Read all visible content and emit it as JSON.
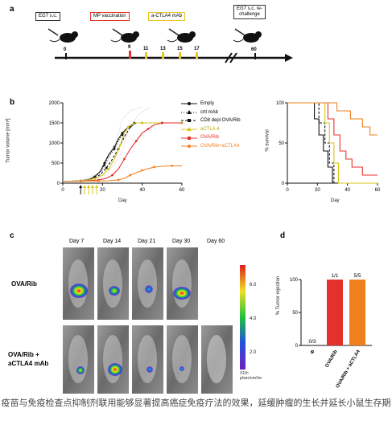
{
  "panels": {
    "a": "a",
    "b": "b",
    "c": "c",
    "d": "d"
  },
  "timeline": {
    "boxes": [
      {
        "text": "EG7 s.c.",
        "color": "#333333"
      },
      {
        "text": "MP vaccination",
        "color": "#e5312c"
      },
      {
        "text": "a-CTLA4 mAb",
        "color": "#e8c528"
      },
      {
        "text": "EG7 s.c. re-\nchallenge",
        "color": "#333333"
      }
    ],
    "ticks": [
      "0",
      "9",
      "11",
      "13",
      "15",
      "17",
      "60"
    ]
  },
  "chart_data": [
    {
      "type": "line",
      "ylabel": "Tumor volume [mm³]",
      "xlabel": "Day",
      "xlim": [
        0,
        60
      ],
      "ylim": [
        0,
        2000
      ],
      "xticks": [
        "0",
        "20",
        "40",
        "60"
      ],
      "yticks": [
        "0",
        "500",
        "1000",
        "1500",
        "2000"
      ],
      "series": [
        {
          "name": "Empty",
          "color": "#111111",
          "x": [
            0,
            9,
            13,
            16,
            19,
            21,
            23,
            26,
            28,
            30,
            33,
            36,
            40,
            50,
            60
          ],
          "y": [
            40,
            60,
            90,
            160,
            300,
            500,
            700,
            900,
            1100,
            1250,
            1400,
            1500,
            1500,
            1500,
            1500
          ]
        },
        {
          "name": "crtl mAb",
          "color": "#111111",
          "x": [
            0,
            9,
            13,
            16,
            19,
            21,
            23,
            26,
            28,
            30,
            33,
            36,
            40,
            50,
            60
          ],
          "y": [
            40,
            60,
            90,
            150,
            280,
            450,
            650,
            850,
            1050,
            1200,
            1380,
            1500,
            1500,
            1500,
            1500
          ]
        },
        {
          "name": "CD8 depl OVA/Rib",
          "color": "#111111",
          "x": [
            0,
            9,
            13,
            16,
            19,
            22,
            25,
            28,
            31,
            34,
            37,
            40,
            50,
            60
          ],
          "y": [
            40,
            60,
            80,
            120,
            220,
            380,
            600,
            850,
            1150,
            1400,
            1500,
            1500,
            1500,
            1500
          ]
        },
        {
          "name": "aCTLA 4",
          "color": "#d8c51a",
          "x": [
            0,
            9,
            13,
            16,
            20,
            23,
            26,
            29,
            31,
            33,
            36,
            40,
            50,
            60
          ],
          "y": [
            40,
            60,
            80,
            110,
            200,
            350,
            600,
            950,
            1250,
            1400,
            1500,
            1500,
            1500,
            1500
          ]
        },
        {
          "name": "OVA/Rib",
          "color": "#e5312c",
          "x": [
            0,
            9,
            13,
            18,
            22,
            25,
            28,
            31,
            34,
            37,
            40,
            43,
            46,
            50,
            60
          ],
          "y": [
            40,
            50,
            60,
            80,
            120,
            200,
            350,
            600,
            850,
            1050,
            1250,
            1350,
            1450,
            1500,
            1500
          ]
        },
        {
          "name": "OVA/Rib+aCTLA4",
          "color": "#f07f1e",
          "x": [
            0,
            9,
            13,
            18,
            23,
            28,
            31,
            34,
            37,
            40,
            43,
            46,
            50,
            55,
            60
          ],
          "y": [
            40,
            45,
            50,
            55,
            60,
            80,
            120,
            200,
            260,
            320,
            360,
            400,
            420,
            430,
            430
          ]
        }
      ]
    },
    {
      "type": "line",
      "ylabel": "% survival",
      "xlabel": "Day",
      "xlim": [
        0,
        60
      ],
      "ylim": [
        0,
        100
      ],
      "xticks": [
        "0",
        "20",
        "40",
        "60"
      ],
      "yticks": [
        "0",
        "50",
        "100"
      ],
      "series": [
        {
          "color": "#111111",
          "x": [
            0,
            18,
            18,
            21,
            21,
            24,
            24,
            27,
            27,
            30,
            30,
            60
          ],
          "y": [
            100,
            100,
            80,
            80,
            60,
            60,
            40,
            40,
            20,
            20,
            0,
            0
          ]
        },
        {
          "color": "#111111",
          "x": [
            0,
            21,
            21,
            25,
            25,
            28,
            28,
            31,
            31,
            60
          ],
          "y": [
            100,
            100,
            75,
            75,
            50,
            50,
            25,
            25,
            0,
            0
          ]
        },
        {
          "color": "#d8c51a",
          "x": [
            0,
            25,
            25,
            28,
            28,
            31,
            31,
            34,
            34,
            60
          ],
          "y": [
            100,
            100,
            75,
            75,
            50,
            50,
            25,
            25,
            0,
            0
          ]
        },
        {
          "color": "#e5312c",
          "x": [
            0,
            27,
            27,
            31,
            31,
            35,
            35,
            39,
            39,
            43,
            43,
            50,
            50,
            60
          ],
          "y": [
            100,
            100,
            80,
            80,
            60,
            60,
            40,
            40,
            30,
            30,
            20,
            20,
            10,
            10
          ]
        },
        {
          "color": "#f07f1e",
          "x": [
            0,
            33,
            33,
            42,
            42,
            50,
            50,
            55,
            55,
            60
          ],
          "y": [
            100,
            100,
            90,
            90,
            80,
            80,
            70,
            70,
            60,
            60
          ]
        }
      ]
    },
    {
      "type": "bar",
      "ylabel": "% Tumor rejection",
      "categories": [
        "Φ",
        "OVA/Rib",
        "OVA/Rib + aCTLA4"
      ],
      "values": [
        0,
        100,
        100
      ],
      "bar_labels": [
        "0/3",
        "1/1",
        "5/5"
      ],
      "colors": [
        "#cccccc",
        "#e5312c",
        "#f07f1e"
      ],
      "ylim": [
        0,
        100
      ],
      "yticks": [
        "0",
        "50",
        "100"
      ]
    }
  ],
  "imaging": {
    "days": [
      "Day 7",
      "Day 14",
      "Day 21",
      "Day 30",
      "Day 60"
    ],
    "rows": [
      "OVA/Rib",
      "OVA/Rib +\naCTLA4 mAb"
    ],
    "colorbar": {
      "ticks": [
        "6.0",
        "4.0",
        "2.0"
      ],
      "unit": "X10⁶\np/sec/cm²/sr"
    }
  },
  "caption": "疫苗与免疫检查点抑制剂联用能够显著提高癌症免疫疗法的效果，延缓肿瘤的生长并延长小鼠生存期"
}
